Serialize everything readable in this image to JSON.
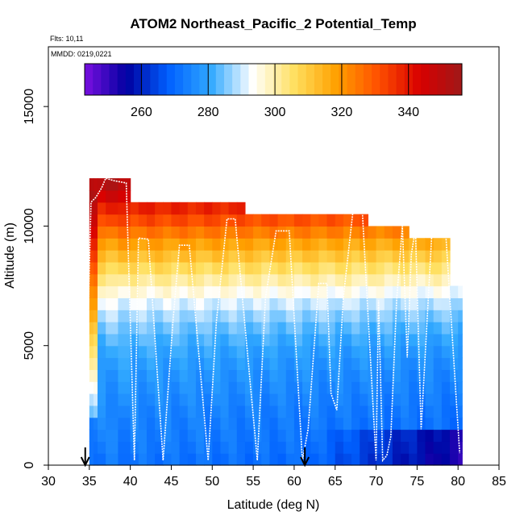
{
  "chart_data": {
    "type": "heatmap",
    "title": "ATOM2 Northeast_Pacific_2 Potential_Temp",
    "flights_text": "Flts: 10,11",
    "dates_text": "MMDD: 0219,0221",
    "xlabel": "Latitude (deg N)",
    "ylabel": "Altitude (m)",
    "xlim": [
      30,
      85
    ],
    "ylim": [
      0,
      17500
    ],
    "x_ticks": [
      30,
      35,
      40,
      45,
      50,
      55,
      60,
      65,
      70,
      75,
      80,
      85
    ],
    "y_ticks": [
      0,
      5000,
      10000,
      15000
    ],
    "grid": false,
    "colorbar": {
      "position": "top",
      "range": [
        243,
        356
      ],
      "ticks": [
        260,
        280,
        300,
        320,
        340
      ],
      "colors": [
        "#7a10e0",
        "#0000a0",
        "#0060ff",
        "#30a8ff",
        "#ffffff",
        "#ffe060",
        "#ffa000",
        "#ff5000",
        "#d80000",
        "#a01818"
      ]
    },
    "grid_x_edges": [
      35.0,
      35.5,
      36.0,
      37.0,
      38.5,
      40.0,
      41.0,
      42.0,
      43.0,
      44.0,
      45.0,
      46.0,
      47.0,
      48.0,
      49.0,
      50.0,
      51.0,
      52.0,
      53.0,
      54.0,
      55.0,
      56.0,
      57.0,
      58.0,
      59.0,
      60.0,
      61.0,
      62.0,
      63.0,
      64.0,
      65.0,
      66.0,
      67.0,
      68.0,
      69.0,
      70.0,
      71.0,
      72.0,
      73.0,
      74.0,
      75.0,
      76.0,
      77.0,
      78.0,
      79.0,
      80.0,
      80.5
    ],
    "grid_alt_step": 500,
    "profile_temp": [
      [
        0,
        270
      ],
      [
        1000,
        272
      ],
      [
        2000,
        273
      ],
      [
        3000,
        275
      ],
      [
        4000,
        277
      ],
      [
        5000,
        280
      ],
      [
        6000,
        285
      ],
      [
        7000,
        292
      ],
      [
        8000,
        303
      ],
      [
        8800,
        312
      ],
      [
        9500,
        320
      ],
      [
        10000,
        328
      ],
      [
        10500,
        334
      ],
      [
        11000,
        340
      ],
      [
        11500,
        347
      ],
      [
        12000,
        352
      ]
    ],
    "warm_anomaly": {
      "lat_max": 36.5,
      "value": 30,
      "alt_range": [
        2000,
        11500
      ]
    },
    "coverage_tops": [
      {
        "lat": [
          35.0,
          38.5
        ],
        "top": 12000
      },
      {
        "lat": [
          38.5,
          40.0
        ],
        "top": 12000
      },
      {
        "lat": [
          40.0,
          54.5
        ],
        "top": 11000
      },
      {
        "lat": [
          54.5,
          69.5
        ],
        "top": 10500
      },
      {
        "lat": [
          69.5,
          74.0
        ],
        "top": 10000
      },
      {
        "lat": [
          74.0,
          79.5
        ],
        "top": 9500
      },
      {
        "lat": [
          79.5,
          80.5
        ],
        "top": 7500
      }
    ],
    "flight_track": [
      [
        34.5,
        1300
      ],
      [
        35.2,
        11000
      ],
      [
        35.8,
        11200
      ],
      [
        36.5,
        11600
      ],
      [
        37.0,
        12000
      ],
      [
        38.0,
        11900
      ],
      [
        39.5,
        11800
      ],
      [
        40.5,
        200
      ],
      [
        41.0,
        9500
      ],
      [
        42.2,
        9450
      ],
      [
        44.0,
        200
      ],
      [
        45.2,
        6000
      ],
      [
        46.0,
        9200
      ],
      [
        47.2,
        9200
      ],
      [
        49.5,
        200
      ],
      [
        50.5,
        6000
      ],
      [
        51.8,
        10300
      ],
      [
        52.8,
        10300
      ],
      [
        55.5,
        200
      ],
      [
        56.5,
        7000
      ],
      [
        57.8,
        9800
      ],
      [
        59.4,
        9800
      ],
      [
        61.0,
        200
      ],
      [
        61.7,
        1500
      ],
      [
        63.0,
        7600
      ],
      [
        64.0,
        7600
      ],
      [
        64.5,
        3000
      ],
      [
        65.2,
        2300
      ],
      [
        66.0,
        7000
      ],
      [
        67.2,
        10700
      ],
      [
        68.3,
        10700
      ],
      [
        70.0,
        200
      ],
      [
        70.3,
        6900
      ],
      [
        70.8,
        200
      ],
      [
        71.3,
        400
      ],
      [
        71.8,
        1200
      ],
      [
        72.5,
        6900
      ],
      [
        73.2,
        10000
      ],
      [
        73.8,
        4500
      ],
      [
        74.3,
        8800
      ],
      [
        74.8,
        9900
      ],
      [
        75.5,
        1500
      ],
      [
        76.8,
        9700
      ],
      [
        78.5,
        9700
      ],
      [
        80.2,
        500
      ]
    ],
    "arrows_lat": [
      34.5,
      61.3
    ]
  }
}
